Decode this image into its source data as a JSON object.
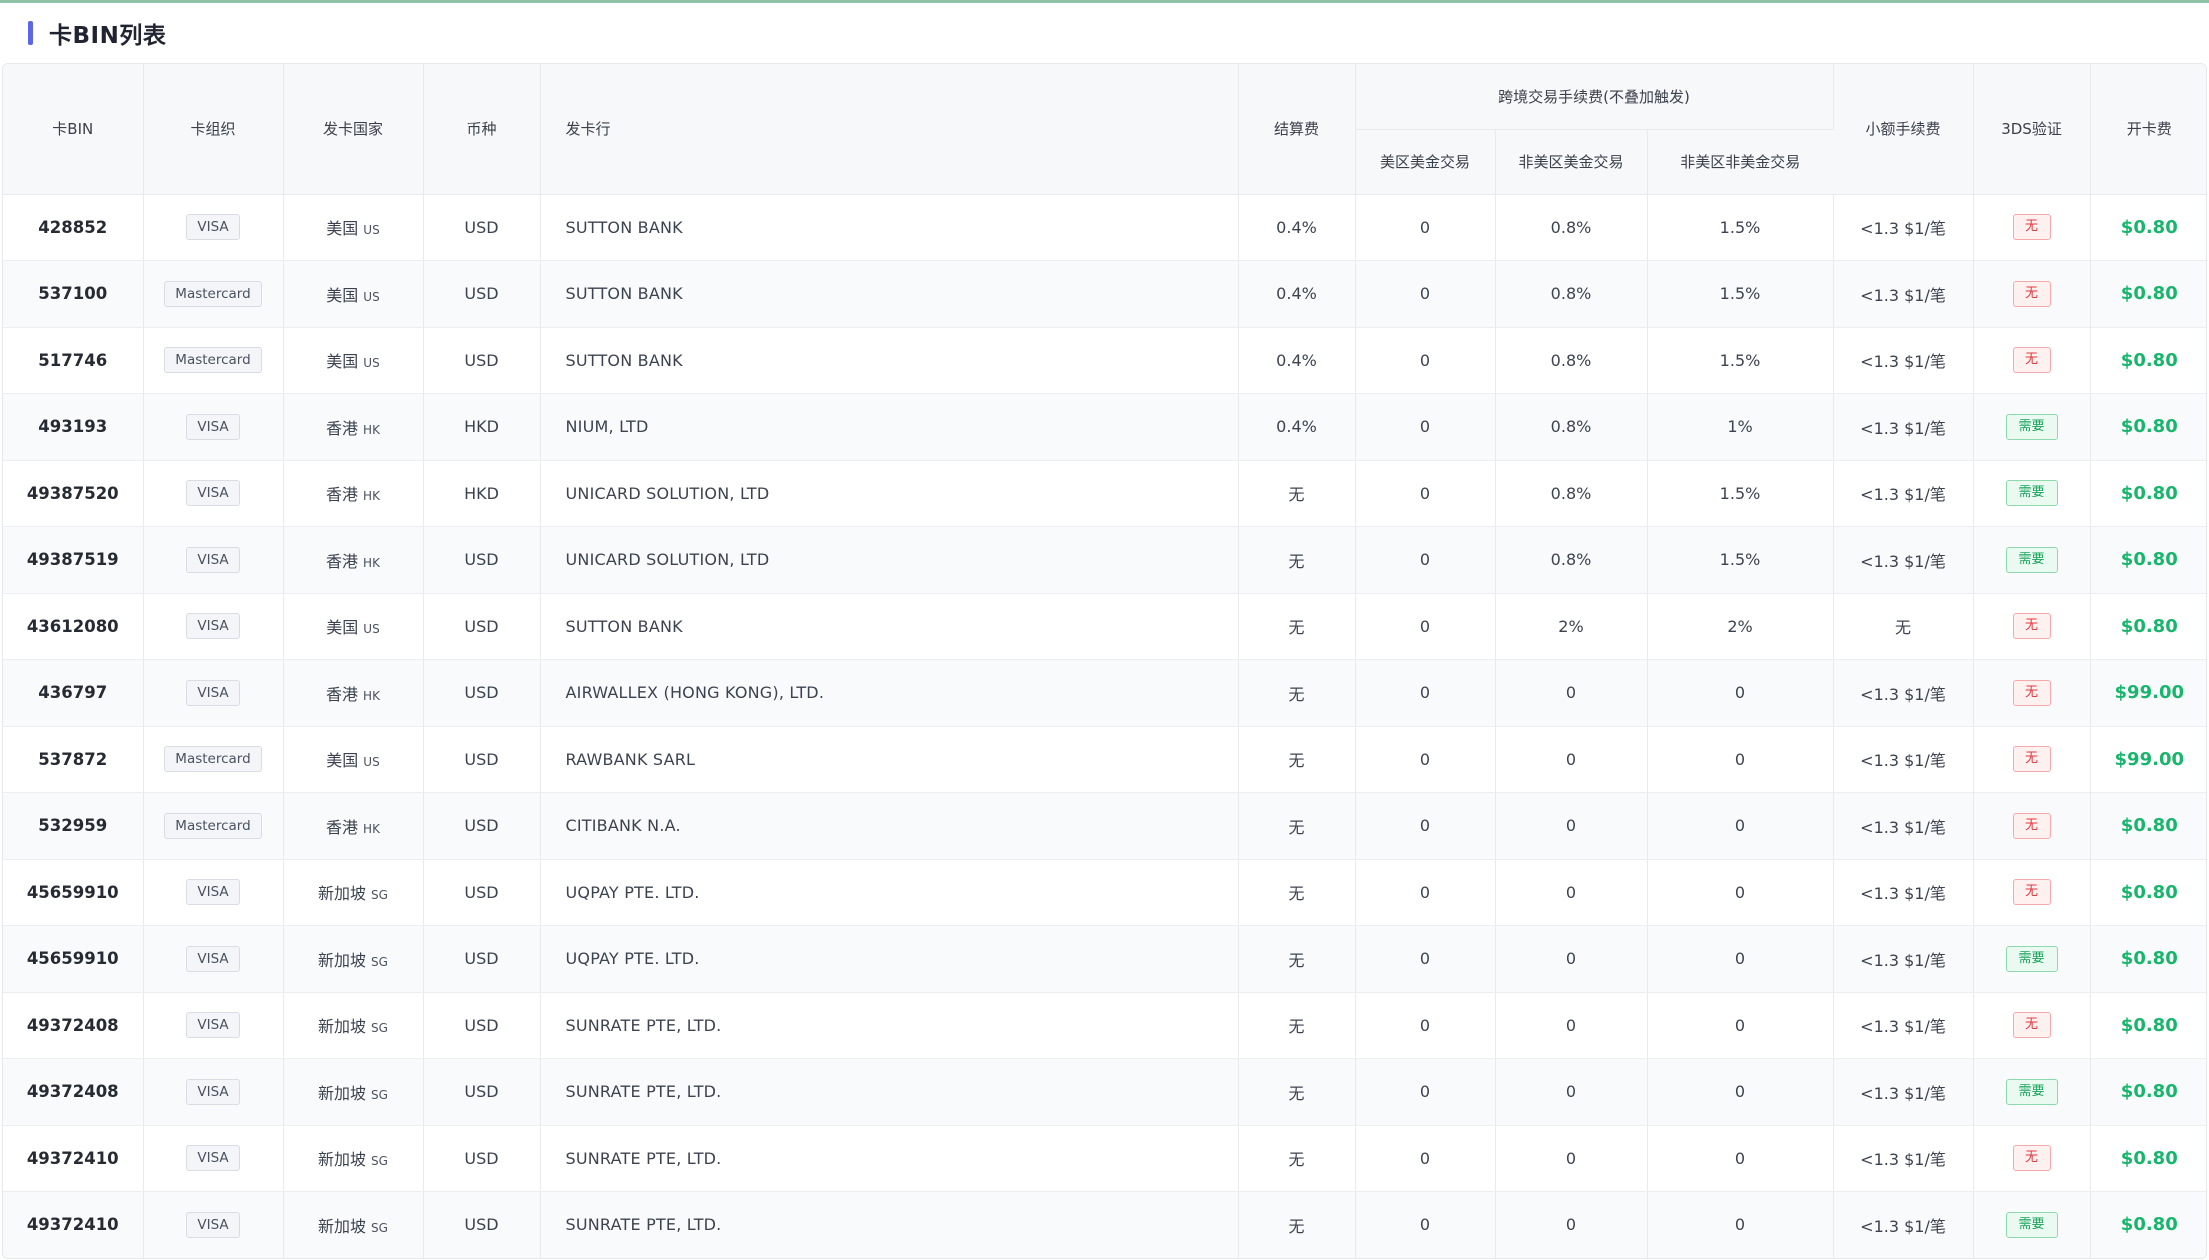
{
  "page": {
    "title": "卡BIN列表"
  },
  "table": {
    "headers": {
      "bin": "卡BIN",
      "org": "卡组织",
      "country": "发卡国家",
      "currency": "币种",
      "issuer": "发卡行",
      "settlement": "结算费",
      "cross_border_group": "跨境交易手续费(不叠加触发)",
      "us_usd": "美区美金交易",
      "non_us_usd": "非美区美金交易",
      "non_us_non_usd": "非美区非美金交易",
      "small_fee": "小额手续费",
      "three_ds": "3DS验证",
      "open_fee": "开卡费"
    },
    "rows": [
      {
        "bin": "428852",
        "org": "VISA",
        "country": "美国",
        "cc": "US",
        "currency": "USD",
        "issuer": "SUTTON BANK",
        "settlement": "0.4%",
        "us_usd": "0",
        "non_us_usd": "0.8%",
        "non_us_non_usd": "1.5%",
        "small_fee": "<1.3 $1/笔",
        "three_ds": "无",
        "three_ds_required": false,
        "open_fee": "$0.80"
      },
      {
        "bin": "537100",
        "org": "Mastercard",
        "country": "美国",
        "cc": "US",
        "currency": "USD",
        "issuer": "SUTTON BANK",
        "settlement": "0.4%",
        "us_usd": "0",
        "non_us_usd": "0.8%",
        "non_us_non_usd": "1.5%",
        "small_fee": "<1.3 $1/笔",
        "three_ds": "无",
        "three_ds_required": false,
        "open_fee": "$0.80"
      },
      {
        "bin": "517746",
        "org": "Mastercard",
        "country": "美国",
        "cc": "US",
        "currency": "USD",
        "issuer": "SUTTON BANK",
        "settlement": "0.4%",
        "us_usd": "0",
        "non_us_usd": "0.8%",
        "non_us_non_usd": "1.5%",
        "small_fee": "<1.3 $1/笔",
        "three_ds": "无",
        "three_ds_required": false,
        "open_fee": "$0.80"
      },
      {
        "bin": "493193",
        "org": "VISA",
        "country": "香港",
        "cc": "HK",
        "currency": "HKD",
        "issuer": "NIUM, LTD",
        "settlement": "0.4%",
        "us_usd": "0",
        "non_us_usd": "0.8%",
        "non_us_non_usd": "1%",
        "small_fee": "<1.3 $1/笔",
        "three_ds": "需要",
        "three_ds_required": true,
        "open_fee": "$0.80"
      },
      {
        "bin": "49387520",
        "org": "VISA",
        "country": "香港",
        "cc": "HK",
        "currency": "HKD",
        "issuer": "UNICARD SOLUTION, LTD",
        "settlement": "无",
        "us_usd": "0",
        "non_us_usd": "0.8%",
        "non_us_non_usd": "1.5%",
        "small_fee": "<1.3 $1/笔",
        "three_ds": "需要",
        "three_ds_required": true,
        "open_fee": "$0.80"
      },
      {
        "bin": "49387519",
        "org": "VISA",
        "country": "香港",
        "cc": "HK",
        "currency": "USD",
        "issuer": "UNICARD SOLUTION, LTD",
        "settlement": "无",
        "us_usd": "0",
        "non_us_usd": "0.8%",
        "non_us_non_usd": "1.5%",
        "small_fee": "<1.3 $1/笔",
        "three_ds": "需要",
        "three_ds_required": true,
        "open_fee": "$0.80"
      },
      {
        "bin": "43612080",
        "org": "VISA",
        "country": "美国",
        "cc": "US",
        "currency": "USD",
        "issuer": "SUTTON BANK",
        "settlement": "无",
        "us_usd": "0",
        "non_us_usd": "2%",
        "non_us_non_usd": "2%",
        "small_fee": "无",
        "three_ds": "无",
        "three_ds_required": false,
        "open_fee": "$0.80"
      },
      {
        "bin": "436797",
        "org": "VISA",
        "country": "香港",
        "cc": "HK",
        "currency": "USD",
        "issuer": "AIRWALLEX (HONG KONG), LTD.",
        "settlement": "无",
        "us_usd": "0",
        "non_us_usd": "0",
        "non_us_non_usd": "0",
        "small_fee": "<1.3 $1/笔",
        "three_ds": "无",
        "three_ds_required": false,
        "open_fee": "$99.00"
      },
      {
        "bin": "537872",
        "org": "Mastercard",
        "country": "美国",
        "cc": "US",
        "currency": "USD",
        "issuer": "RAWBANK SARL",
        "settlement": "无",
        "us_usd": "0",
        "non_us_usd": "0",
        "non_us_non_usd": "0",
        "small_fee": "<1.3 $1/笔",
        "three_ds": "无",
        "three_ds_required": false,
        "open_fee": "$99.00"
      },
      {
        "bin": "532959",
        "org": "Mastercard",
        "country": "香港",
        "cc": "HK",
        "currency": "USD",
        "issuer": "CITIBANK N.A.",
        "settlement": "无",
        "us_usd": "0",
        "non_us_usd": "0",
        "non_us_non_usd": "0",
        "small_fee": "<1.3 $1/笔",
        "three_ds": "无",
        "three_ds_required": false,
        "open_fee": "$0.80"
      },
      {
        "bin": "45659910",
        "org": "VISA",
        "country": "新加坡",
        "cc": "SG",
        "currency": "USD",
        "issuer": "UQPAY PTE. LTD.",
        "settlement": "无",
        "us_usd": "0",
        "non_us_usd": "0",
        "non_us_non_usd": "0",
        "small_fee": "<1.3 $1/笔",
        "three_ds": "无",
        "three_ds_required": false,
        "open_fee": "$0.80"
      },
      {
        "bin": "45659910",
        "org": "VISA",
        "country": "新加坡",
        "cc": "SG",
        "currency": "USD",
        "issuer": "UQPAY PTE. LTD.",
        "settlement": "无",
        "us_usd": "0",
        "non_us_usd": "0",
        "non_us_non_usd": "0",
        "small_fee": "<1.3 $1/笔",
        "three_ds": "需要",
        "three_ds_required": true,
        "open_fee": "$0.80"
      },
      {
        "bin": "49372408",
        "org": "VISA",
        "country": "新加坡",
        "cc": "SG",
        "currency": "USD",
        "issuer": "SUNRATE PTE, LTD.",
        "settlement": "无",
        "us_usd": "0",
        "non_us_usd": "0",
        "non_us_non_usd": "0",
        "small_fee": "<1.3 $1/笔",
        "three_ds": "无",
        "three_ds_required": false,
        "open_fee": "$0.80"
      },
      {
        "bin": "49372408",
        "org": "VISA",
        "country": "新加坡",
        "cc": "SG",
        "currency": "USD",
        "issuer": "SUNRATE PTE, LTD.",
        "settlement": "无",
        "us_usd": "0",
        "non_us_usd": "0",
        "non_us_non_usd": "0",
        "small_fee": "<1.3 $1/笔",
        "three_ds": "需要",
        "three_ds_required": true,
        "open_fee": "$0.80"
      },
      {
        "bin": "49372410",
        "org": "VISA",
        "country": "新加坡",
        "cc": "SG",
        "currency": "USD",
        "issuer": "SUNRATE PTE, LTD.",
        "settlement": "无",
        "us_usd": "0",
        "non_us_usd": "0",
        "non_us_non_usd": "0",
        "small_fee": "<1.3 $1/笔",
        "three_ds": "无",
        "three_ds_required": false,
        "open_fee": "$0.80"
      },
      {
        "bin": "49372410",
        "org": "VISA",
        "country": "新加坡",
        "cc": "SG",
        "currency": "USD",
        "issuer": "SUNRATE PTE, LTD.",
        "settlement": "无",
        "us_usd": "0",
        "non_us_usd": "0",
        "non_us_non_usd": "0",
        "small_fee": "<1.3 $1/笔",
        "three_ds": "需要",
        "three_ds_required": true,
        "open_fee": "$0.80"
      }
    ]
  },
  "colors": {
    "accent": "#5b67e6",
    "fee_green": "#18b56c",
    "tag_no": "#e0383e",
    "tag_yes": "#17a35a"
  }
}
